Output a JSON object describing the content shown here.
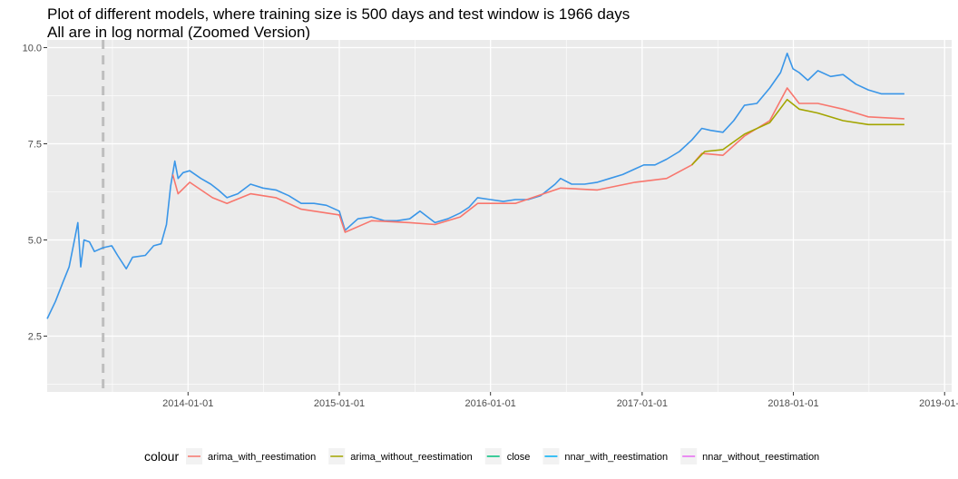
{
  "chart_data": {
    "type": "line",
    "title": "Plot of different models, where training size is 500 days and test window is 1966 days",
    "subtitle": "All are in log normal (Zoomed Version)",
    "xlabel": "",
    "ylabel": "",
    "xlim": [
      "2013-01-26",
      "2019-01-18"
    ],
    "ylim": [
      1.05,
      10.2
    ],
    "x_ticks": [
      "2014-01-01",
      "2015-01-01",
      "2016-01-01",
      "2017-01-01",
      "2018-01-01",
      "2019-01-01"
    ],
    "x_tick_labels": [
      "2014-01-01",
      "2015-01-01",
      "2016-01-01",
      "2017-01-01",
      "2018-01-01",
      "2019-01-01"
    ],
    "y_ticks": [
      2.5,
      5.0,
      7.5,
      10.0
    ],
    "y_tick_labels": [
      "2.5",
      "5.0",
      "7.5",
      "10.0"
    ],
    "grid": true,
    "vline": {
      "x": "2013-06-10",
      "style": "dashed",
      "color": "#bebebe"
    },
    "legend": {
      "title": "colour",
      "position": "bottom",
      "entries": [
        {
          "label": "arima_with_reestimation",
          "color": "#F8766D"
        },
        {
          "label": "arima_without_reestimation",
          "color": "#A3A500"
        },
        {
          "label": "close",
          "color": "#00BF7D"
        },
        {
          "label": "nnar_with_reestimation",
          "color": "#00B0F6"
        },
        {
          "label": "nnar_without_reestimation",
          "color": "#E76BF3"
        }
      ]
    },
    "series": [
      {
        "name": "nnar_with_reestimation",
        "color": "#3A96E8",
        "points": [
          [
            "2013-01-26",
            2.95
          ],
          [
            "2013-02-15",
            3.4
          ],
          [
            "2013-03-05",
            3.9
          ],
          [
            "2013-03-20",
            4.3
          ],
          [
            "2013-04-02",
            5.0
          ],
          [
            "2013-04-10",
            5.45
          ],
          [
            "2013-04-17",
            4.3
          ],
          [
            "2013-04-25",
            5.0
          ],
          [
            "2013-05-08",
            4.95
          ],
          [
            "2013-05-20",
            4.7
          ],
          [
            "2013-06-10",
            4.8
          ],
          [
            "2013-07-01",
            4.85
          ],
          [
            "2013-07-15",
            4.6
          ],
          [
            "2013-08-05",
            4.25
          ],
          [
            "2013-08-20",
            4.55
          ],
          [
            "2013-09-20",
            4.6
          ],
          [
            "2013-10-10",
            4.85
          ],
          [
            "2013-10-28",
            4.9
          ],
          [
            "2013-11-10",
            5.4
          ],
          [
            "2013-11-20",
            6.4
          ],
          [
            "2013-11-30",
            7.05
          ],
          [
            "2013-12-08",
            6.6
          ],
          [
            "2013-12-20",
            6.75
          ],
          [
            "2014-01-05",
            6.8
          ],
          [
            "2014-02-01",
            6.6
          ],
          [
            "2014-02-25",
            6.45
          ],
          [
            "2014-03-15",
            6.3
          ],
          [
            "2014-04-05",
            6.1
          ],
          [
            "2014-05-01",
            6.2
          ],
          [
            "2014-06-01",
            6.45
          ],
          [
            "2014-07-01",
            6.35
          ],
          [
            "2014-08-01",
            6.3
          ],
          [
            "2014-09-01",
            6.15
          ],
          [
            "2014-10-01",
            5.95
          ],
          [
            "2014-11-01",
            5.95
          ],
          [
            "2014-12-01",
            5.9
          ],
          [
            "2015-01-01",
            5.75
          ],
          [
            "2015-01-15",
            5.25
          ],
          [
            "2015-02-15",
            5.55
          ],
          [
            "2015-03-20",
            5.6
          ],
          [
            "2015-04-20",
            5.5
          ],
          [
            "2015-05-20",
            5.5
          ],
          [
            "2015-06-20",
            5.55
          ],
          [
            "2015-07-15",
            5.75
          ],
          [
            "2015-08-20",
            5.45
          ],
          [
            "2015-09-20",
            5.55
          ],
          [
            "2015-10-20",
            5.7
          ],
          [
            "2015-11-10",
            5.85
          ],
          [
            "2015-12-01",
            6.1
          ],
          [
            "2016-01-01",
            6.05
          ],
          [
            "2016-02-01",
            6.0
          ],
          [
            "2016-03-01",
            6.05
          ],
          [
            "2016-04-01",
            6.05
          ],
          [
            "2016-05-01",
            6.15
          ],
          [
            "2016-06-05",
            6.45
          ],
          [
            "2016-06-18",
            6.6
          ],
          [
            "2016-07-15",
            6.45
          ],
          [
            "2016-08-15",
            6.45
          ],
          [
            "2016-09-15",
            6.5
          ],
          [
            "2016-10-15",
            6.6
          ],
          [
            "2016-11-15",
            6.7
          ],
          [
            "2016-12-15",
            6.85
          ],
          [
            "2017-01-05",
            6.95
          ],
          [
            "2017-02-01",
            6.95
          ],
          [
            "2017-03-01",
            7.1
          ],
          [
            "2017-04-01",
            7.3
          ],
          [
            "2017-05-01",
            7.6
          ],
          [
            "2017-05-25",
            7.9
          ],
          [
            "2017-06-15",
            7.85
          ],
          [
            "2017-07-15",
            7.8
          ],
          [
            "2017-08-10",
            8.1
          ],
          [
            "2017-09-05",
            8.5
          ],
          [
            "2017-10-05",
            8.55
          ],
          [
            "2017-11-05",
            8.95
          ],
          [
            "2017-12-01",
            9.35
          ],
          [
            "2017-12-17",
            9.85
          ],
          [
            "2017-12-31",
            9.45
          ],
          [
            "2018-01-15",
            9.35
          ],
          [
            "2018-02-05",
            9.15
          ],
          [
            "2018-03-01",
            9.4
          ],
          [
            "2018-04-01",
            9.25
          ],
          [
            "2018-05-01",
            9.3
          ],
          [
            "2018-06-01",
            9.05
          ],
          [
            "2018-07-01",
            8.9
          ],
          [
            "2018-08-01",
            8.8
          ],
          [
            "2018-09-01",
            8.8
          ],
          [
            "2018-09-26",
            8.8
          ]
        ]
      },
      {
        "name": "arima_with_reestimation",
        "color": "#F8766D",
        "points": [
          [
            "2013-11-25",
            6.7
          ],
          [
            "2013-12-08",
            6.2
          ],
          [
            "2014-01-05",
            6.5
          ],
          [
            "2014-03-01",
            6.1
          ],
          [
            "2014-04-05",
            5.95
          ],
          [
            "2014-06-01",
            6.2
          ],
          [
            "2014-08-01",
            6.1
          ],
          [
            "2014-10-01",
            5.8
          ],
          [
            "2015-01-01",
            5.65
          ],
          [
            "2015-01-15",
            5.2
          ],
          [
            "2015-03-20",
            5.5
          ],
          [
            "2015-06-20",
            5.45
          ],
          [
            "2015-08-20",
            5.4
          ],
          [
            "2015-10-20",
            5.6
          ],
          [
            "2015-12-01",
            5.95
          ],
          [
            "2016-03-01",
            5.95
          ],
          [
            "2016-06-18",
            6.35
          ],
          [
            "2016-09-15",
            6.3
          ],
          [
            "2016-12-15",
            6.5
          ],
          [
            "2017-03-01",
            6.6
          ],
          [
            "2017-05-01",
            6.95
          ],
          [
            "2017-05-25",
            7.25
          ],
          [
            "2017-07-15",
            7.2
          ],
          [
            "2017-09-05",
            7.7
          ],
          [
            "2017-11-05",
            8.1
          ],
          [
            "2017-12-17",
            8.95
          ],
          [
            "2018-01-15",
            8.55
          ],
          [
            "2018-03-01",
            8.55
          ],
          [
            "2018-05-01",
            8.4
          ],
          [
            "2018-07-01",
            8.2
          ],
          [
            "2018-09-26",
            8.15
          ]
        ]
      },
      {
        "name": "arima_without_reestimation",
        "color": "#A3A500",
        "points": [
          [
            "2017-05-01",
            6.95
          ],
          [
            "2017-06-01",
            7.3
          ],
          [
            "2017-07-15",
            7.35
          ],
          [
            "2017-09-05",
            7.75
          ],
          [
            "2017-11-05",
            8.05
          ],
          [
            "2017-12-17",
            8.65
          ],
          [
            "2018-01-15",
            8.4
          ],
          [
            "2018-03-01",
            8.3
          ],
          [
            "2018-05-01",
            8.1
          ],
          [
            "2018-07-01",
            8.0
          ],
          [
            "2018-09-26",
            8.0
          ]
        ]
      }
    ]
  }
}
